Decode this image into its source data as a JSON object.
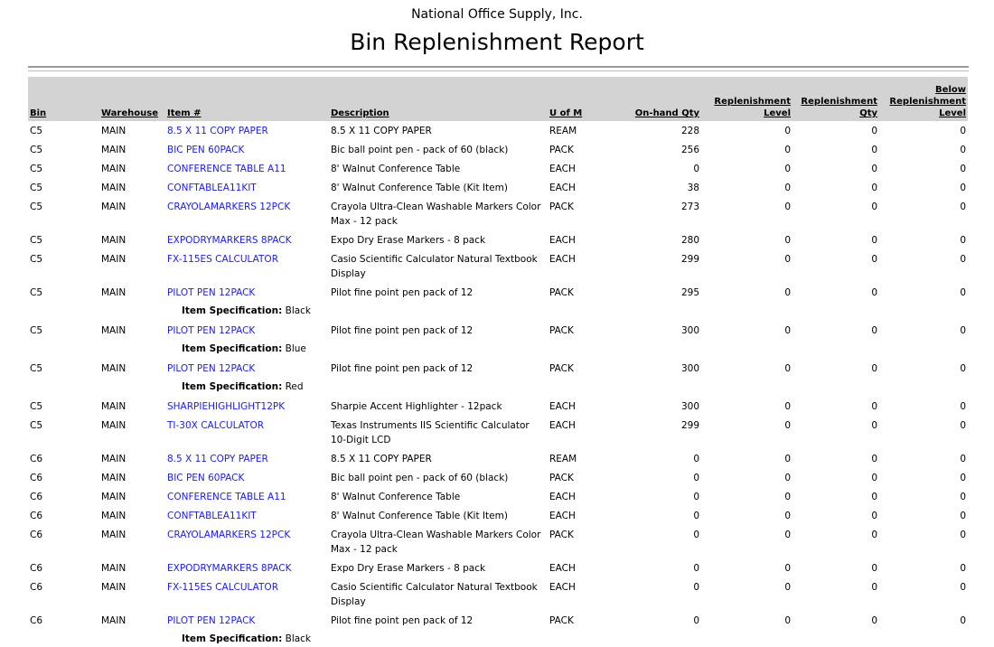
{
  "report": {
    "company": "National Office Supply, Inc.",
    "title": "Bin Replenishment Report"
  },
  "columns": [
    "Bin",
    "Warehouse",
    "Item #",
    "Description",
    "U of M",
    "On-hand Qty",
    "Replenishment Level",
    "Replenishment Qty",
    "Below Replenishment Level"
  ],
  "spec_label": "Item Specification:",
  "rows": [
    {
      "bin": "C5",
      "wh": "MAIN",
      "item": "8.5 X 11 COPY PAPER",
      "desc": "8.5 X 11 COPY PAPER",
      "uom": "REAM",
      "onhand": "228",
      "rl": "0",
      "rq": "0",
      "brl": "0"
    },
    {
      "bin": "C5",
      "wh": "MAIN",
      "item": "BIC PEN 60PACK",
      "desc": "Bic ball point pen - pack of 60 (black)",
      "uom": "PACK",
      "onhand": "256",
      "rl": "0",
      "rq": "0",
      "brl": "0"
    },
    {
      "bin": "C5",
      "wh": "MAIN",
      "item": "CONFERENCE TABLE A11",
      "desc": "8' Walnut Conference Table",
      "uom": "EACH",
      "onhand": "0",
      "rl": "0",
      "rq": "0",
      "brl": "0"
    },
    {
      "bin": "C5",
      "wh": "MAIN",
      "item": "CONFTABLEA11KIT",
      "desc": "8' Walnut Conference Table (Kit Item)",
      "uom": "EACH",
      "onhand": "38",
      "rl": "0",
      "rq": "0",
      "brl": "0"
    },
    {
      "bin": "C5",
      "wh": "MAIN",
      "item": "CRAYOLAMARKERS 12PCK",
      "desc": "Crayola Ultra-Clean Washable Markers Color Max - 12 pack",
      "uom": "PACK",
      "onhand": "273",
      "rl": "0",
      "rq": "0",
      "brl": "0"
    },
    {
      "bin": "C5",
      "wh": "MAIN",
      "item": "EXPODRYMARKERS 8PACK",
      "desc": "Expo Dry Erase Markers - 8 pack",
      "uom": "EACH",
      "onhand": "280",
      "rl": "0",
      "rq": "0",
      "brl": "0"
    },
    {
      "bin": "C5",
      "wh": "MAIN",
      "item": "FX-115ES CALCULATOR",
      "desc": "Casio Scientific Calculator Natural Textbook Display",
      "uom": "EACH",
      "onhand": "299",
      "rl": "0",
      "rq": "0",
      "brl": "0"
    },
    {
      "bin": "C5",
      "wh": "MAIN",
      "item": "PILOT PEN 12PACK",
      "desc": "Pilot fine point pen pack of 12",
      "uom": "PACK",
      "onhand": "295",
      "rl": "0",
      "rq": "0",
      "brl": "0",
      "spec": "Black"
    },
    {
      "bin": "C5",
      "wh": "MAIN",
      "item": "PILOT PEN 12PACK",
      "desc": "Pilot fine point pen pack of 12",
      "uom": "PACK",
      "onhand": "300",
      "rl": "0",
      "rq": "0",
      "brl": "0",
      "spec": "Blue"
    },
    {
      "bin": "C5",
      "wh": "MAIN",
      "item": "PILOT PEN 12PACK",
      "desc": "Pilot fine point pen pack of 12",
      "uom": "PACK",
      "onhand": "300",
      "rl": "0",
      "rq": "0",
      "brl": "0",
      "spec": "Red"
    },
    {
      "bin": "C5",
      "wh": "MAIN",
      "item": "SHARPIEHIGHLIGHT12PK",
      "desc": "Sharpie Accent Highlighter - 12pack",
      "uom": "EACH",
      "onhand": "300",
      "rl": "0",
      "rq": "0",
      "brl": "0"
    },
    {
      "bin": "C5",
      "wh": "MAIN",
      "item": "TI-30X CALCULATOR",
      "desc": "Texas Instruments IIS Scientific Calculator 10-Digit LCD",
      "uom": "EACH",
      "onhand": "299",
      "rl": "0",
      "rq": "0",
      "brl": "0"
    },
    {
      "bin": "C6",
      "wh": "MAIN",
      "item": "8.5 X 11 COPY PAPER",
      "desc": "8.5 X 11 COPY PAPER",
      "uom": "REAM",
      "onhand": "0",
      "rl": "0",
      "rq": "0",
      "brl": "0"
    },
    {
      "bin": "C6",
      "wh": "MAIN",
      "item": "BIC PEN 60PACK",
      "desc": "Bic ball point pen - pack of 60 (black)",
      "uom": "PACK",
      "onhand": "0",
      "rl": "0",
      "rq": "0",
      "brl": "0"
    },
    {
      "bin": "C6",
      "wh": "MAIN",
      "item": "CONFERENCE TABLE A11",
      "desc": "8' Walnut Conference Table",
      "uom": "EACH",
      "onhand": "0",
      "rl": "0",
      "rq": "0",
      "brl": "0"
    },
    {
      "bin": "C6",
      "wh": "MAIN",
      "item": "CONFTABLEA11KIT",
      "desc": "8' Walnut Conference Table (Kit Item)",
      "uom": "EACH",
      "onhand": "0",
      "rl": "0",
      "rq": "0",
      "brl": "0"
    },
    {
      "bin": "C6",
      "wh": "MAIN",
      "item": "CRAYOLAMARKERS 12PCK",
      "desc": "Crayola Ultra-Clean Washable Markers Color Max - 12 pack",
      "uom": "PACK",
      "onhand": "0",
      "rl": "0",
      "rq": "0",
      "brl": "0"
    },
    {
      "bin": "C6",
      "wh": "MAIN",
      "item": "EXPODRYMARKERS 8PACK",
      "desc": "Expo Dry Erase Markers - 8 pack",
      "uom": "EACH",
      "onhand": "0",
      "rl": "0",
      "rq": "0",
      "brl": "0"
    },
    {
      "bin": "C6",
      "wh": "MAIN",
      "item": "FX-115ES CALCULATOR",
      "desc": "Casio Scientific Calculator Natural Textbook Display",
      "uom": "EACH",
      "onhand": "0",
      "rl": "0",
      "rq": "0",
      "brl": "0"
    },
    {
      "bin": "C6",
      "wh": "MAIN",
      "item": "PILOT PEN 12PACK",
      "desc": "Pilot fine point pen pack of 12",
      "uom": "PACK",
      "onhand": "0",
      "rl": "0",
      "rq": "0",
      "brl": "0",
      "spec": "Black"
    }
  ],
  "colors": {
    "link": "#1a1aff",
    "header_bg": "#d3d3d3"
  }
}
